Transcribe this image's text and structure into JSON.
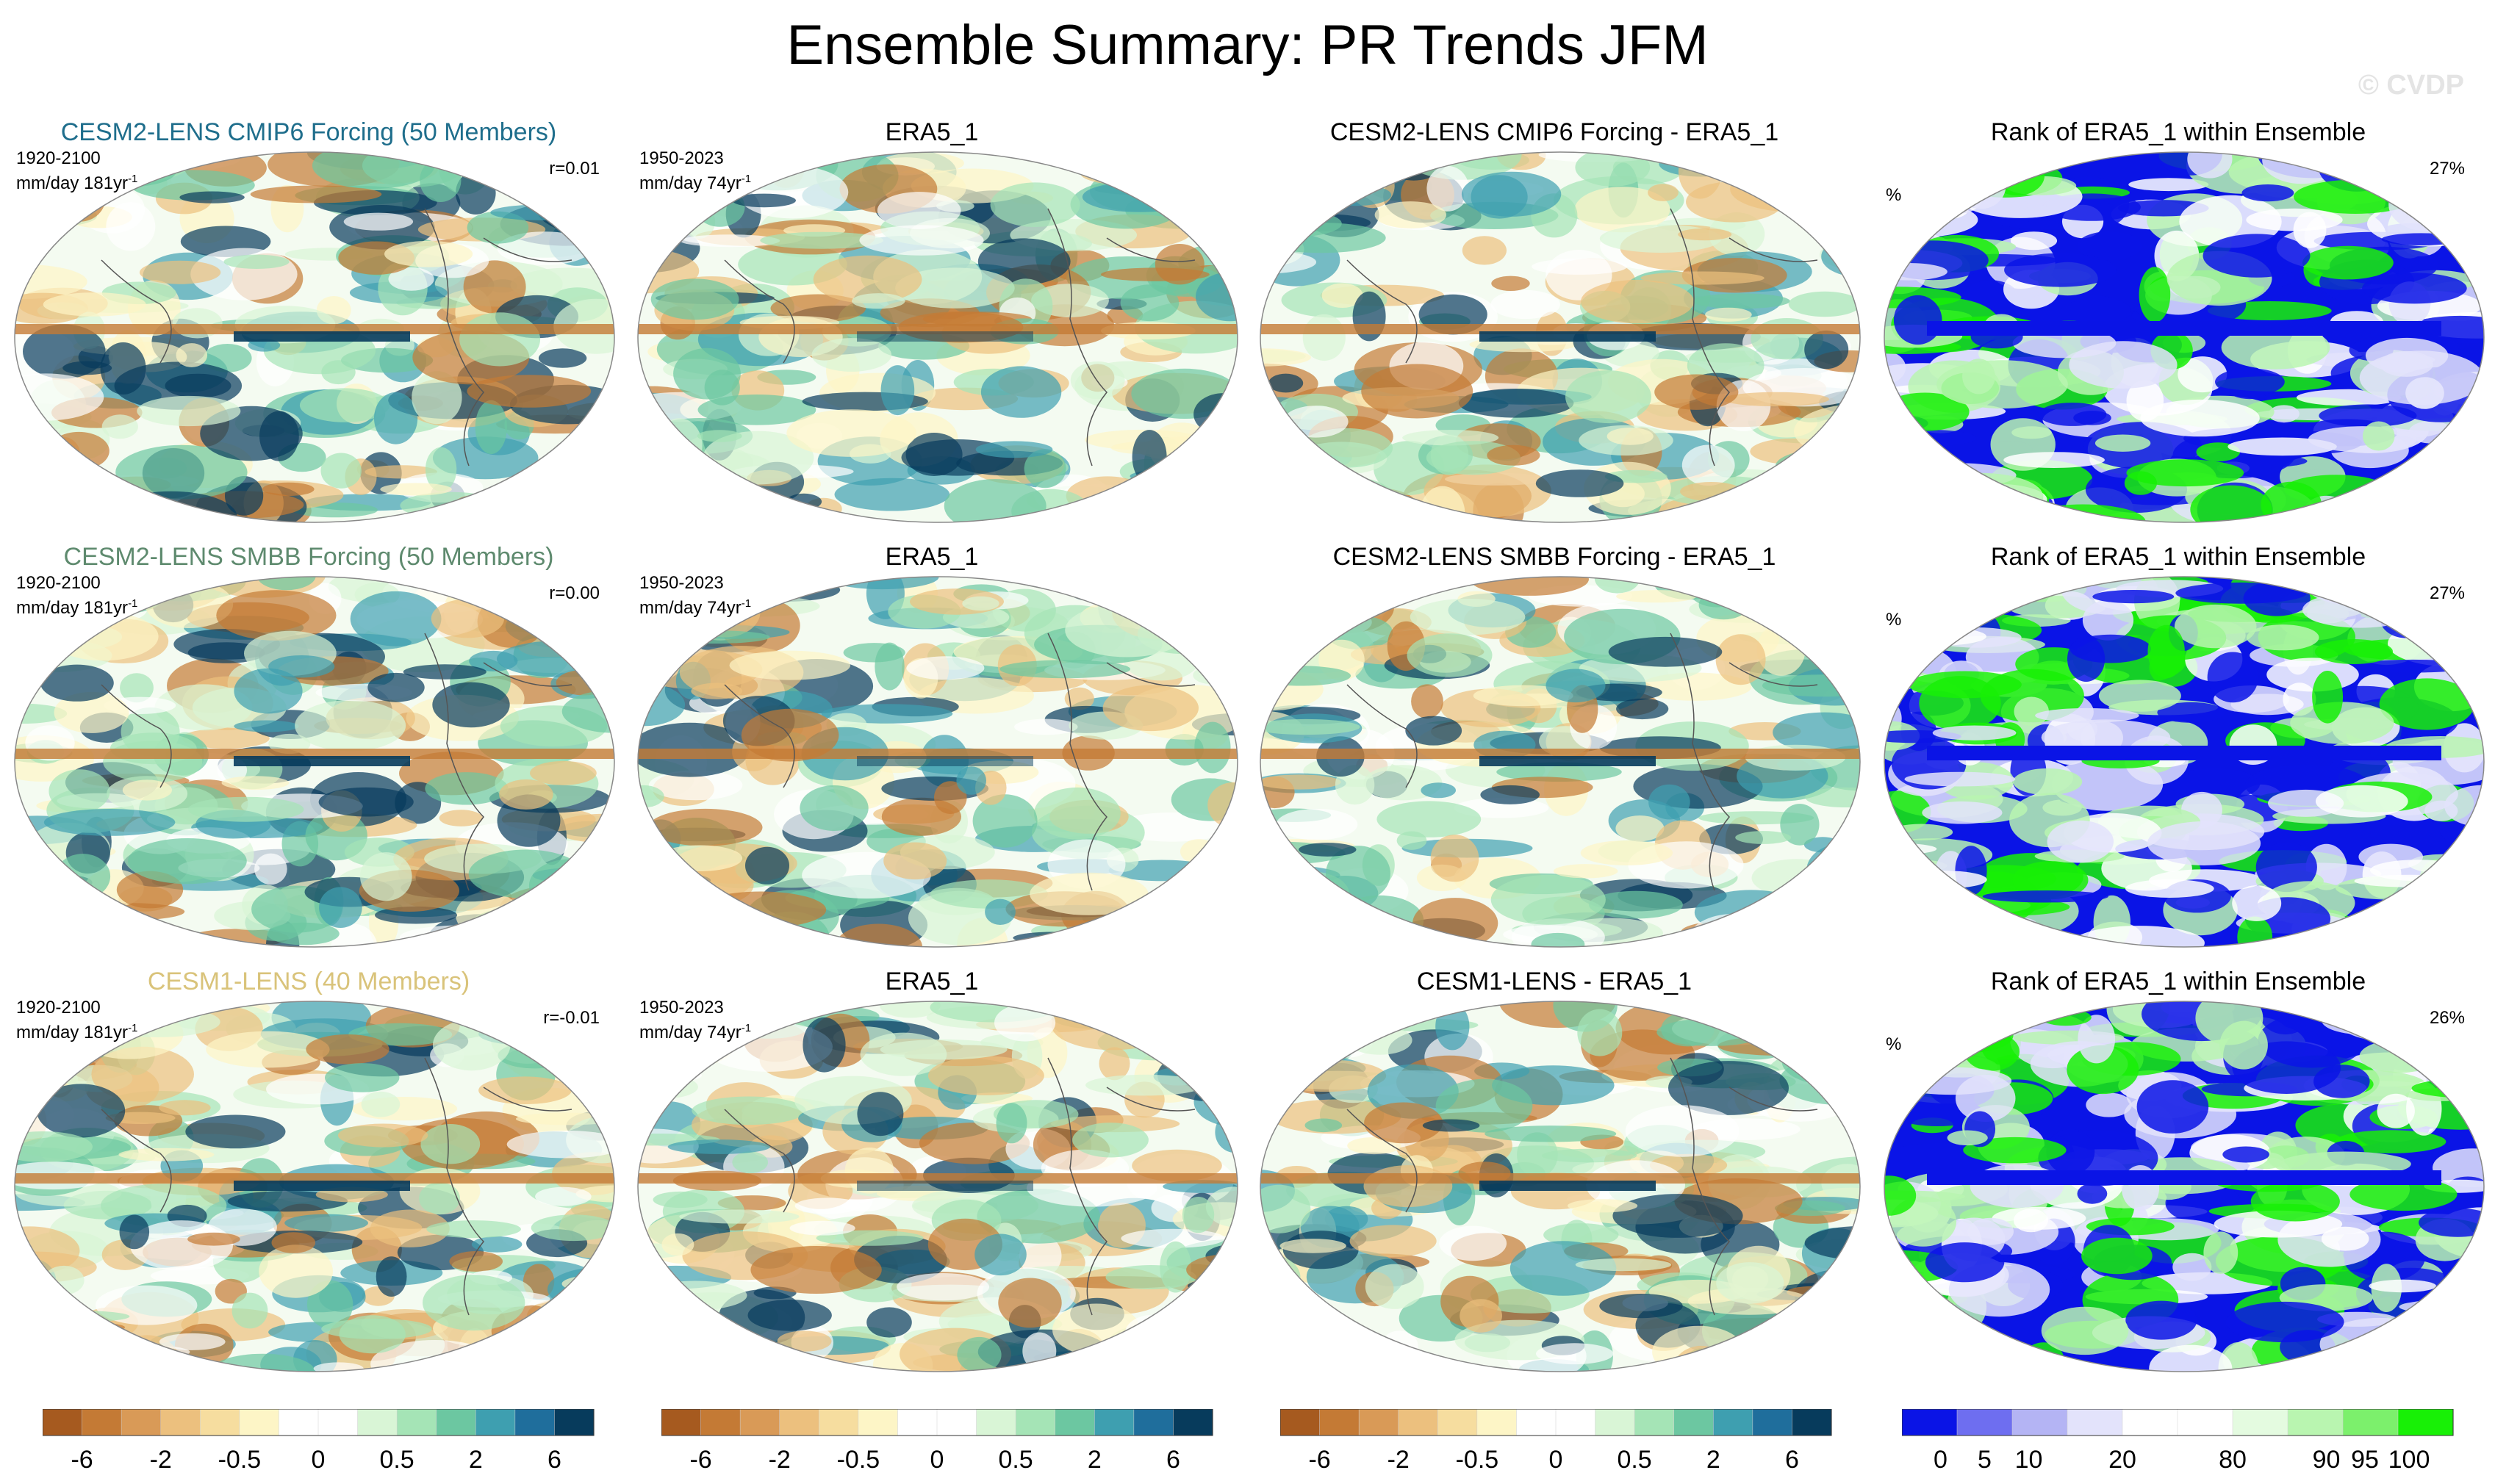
{
  "figure": {
    "title": "Ensemble Summary: PR Trends JFM",
    "watermark": "© CVDP"
  },
  "chart_data": {
    "type": "heatmap",
    "projection": "robinson-style global map",
    "rows": [
      {
        "ensemble": {
          "title": "CESM2-LENS CMIP6 Forcing (50 Members)",
          "title_color": "#1f6e8c",
          "period": "1920-2100",
          "units": "mm/day 181yr",
          "units_exp": "-1",
          "r": "r=0.01"
        },
        "obs": {
          "title": "ERA5_1",
          "period": "1950-2023",
          "units": "mm/day 74yr",
          "units_exp": "-1"
        },
        "diff": {
          "title": "CESM2-LENS CMIP6 Forcing - ERA5_1"
        },
        "rank": {
          "title": "Rank of ERA5_1 within Ensemble",
          "unit": "%",
          "pct": "27%"
        }
      },
      {
        "ensemble": {
          "title": "CESM2-LENS SMBB Forcing (50 Members)",
          "title_color": "#5e8a6e",
          "period": "1920-2100",
          "units": "mm/day 181yr",
          "units_exp": "-1",
          "r": "r=0.00"
        },
        "obs": {
          "title": "ERA5_1",
          "period": "1950-2023",
          "units": "mm/day 74yr",
          "units_exp": "-1"
        },
        "diff": {
          "title": "CESM2-LENS SMBB Forcing - ERA5_1"
        },
        "rank": {
          "title": "Rank of ERA5_1 within Ensemble",
          "unit": "%",
          "pct": "27%"
        }
      },
      {
        "ensemble": {
          "title": "CESM1-LENS (40 Members)",
          "title_color": "#d9c37a",
          "period": "1920-2100",
          "units": "mm/day 181yr",
          "units_exp": "-1",
          "r": "r=-0.01"
        },
        "obs": {
          "title": "ERA5_1",
          "period": "1950-2023",
          "units": "mm/day 74yr",
          "units_exp": "-1"
        },
        "diff": {
          "title": "CESM1-LENS - ERA5_1"
        },
        "rank": {
          "title": "Rank of ERA5_1 within Ensemble",
          "unit": "%",
          "pct": "26%"
        }
      }
    ],
    "trend_colorbar": {
      "colors": [
        "#a65a1f",
        "#c47a35",
        "#d99a57",
        "#ecc07e",
        "#f6dd9f",
        "#fdf5c6",
        "#ffffff",
        "#ffffff",
        "#d9f5d6",
        "#a5e4b6",
        "#6cc7a1",
        "#3e9fb0",
        "#1f6e9c",
        "#073b5c"
      ],
      "tick_labels": [
        "-6",
        "-2",
        "-0.5",
        "0",
        "0.5",
        "2",
        "6"
      ]
    },
    "rank_colorbar": {
      "colors": [
        "#0a14e6",
        "#6e6ef0",
        "#b4b4f4",
        "#e3e3fb",
        "#ffffff",
        "#ffffff",
        "#e4fbe0",
        "#b9f5b0",
        "#7cf06c",
        "#18f006"
      ],
      "tick_labels": [
        "0",
        "5",
        "10",
        "20",
        "80",
        "90",
        "95",
        "100"
      ]
    }
  }
}
